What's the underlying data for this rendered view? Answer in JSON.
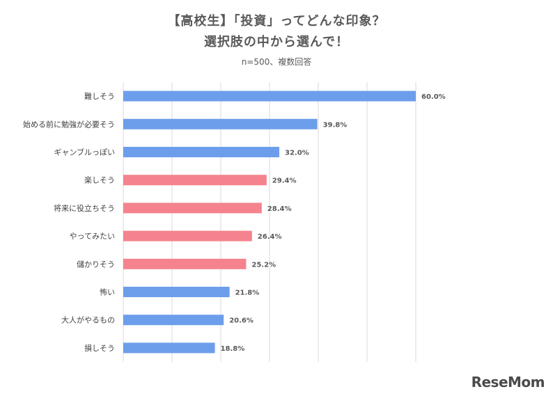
{
  "chart_data": {
    "type": "bar",
    "orientation": "horizontal",
    "title_line1": "【高校生】「投資」ってどんな印象？",
    "title_line2": "選択肢の中から選んで！",
    "subtitle": "n=500、複数回答",
    "categories": [
      "難しそう",
      "始める前に勉強が必要そう",
      "ギャンブルっぽい",
      "楽しそう",
      "将来に役立ちそう",
      "やってみたい",
      "儲かりそう",
      "怖い",
      "大人がやるもの",
      "損しそう"
    ],
    "values": [
      60.0,
      39.8,
      32.0,
      29.4,
      28.4,
      26.4,
      25.2,
      21.8,
      20.6,
      18.8
    ],
    "value_labels": [
      "60.0%",
      "39.8%",
      "32.0%",
      "29.4%",
      "28.4%",
      "26.4%",
      "25.2%",
      "21.8%",
      "20.6%",
      "18.8%"
    ],
    "bar_colors": [
      "#6d9eeb",
      "#6d9eeb",
      "#6d9eeb",
      "#f4838d",
      "#f4838d",
      "#f4838d",
      "#f4838d",
      "#6d9eeb",
      "#6d9eeb",
      "#6d9eeb"
    ],
    "xlim": [
      0,
      60
    ],
    "grid": true,
    "legend": "none"
  },
  "watermark": "ReseMom"
}
